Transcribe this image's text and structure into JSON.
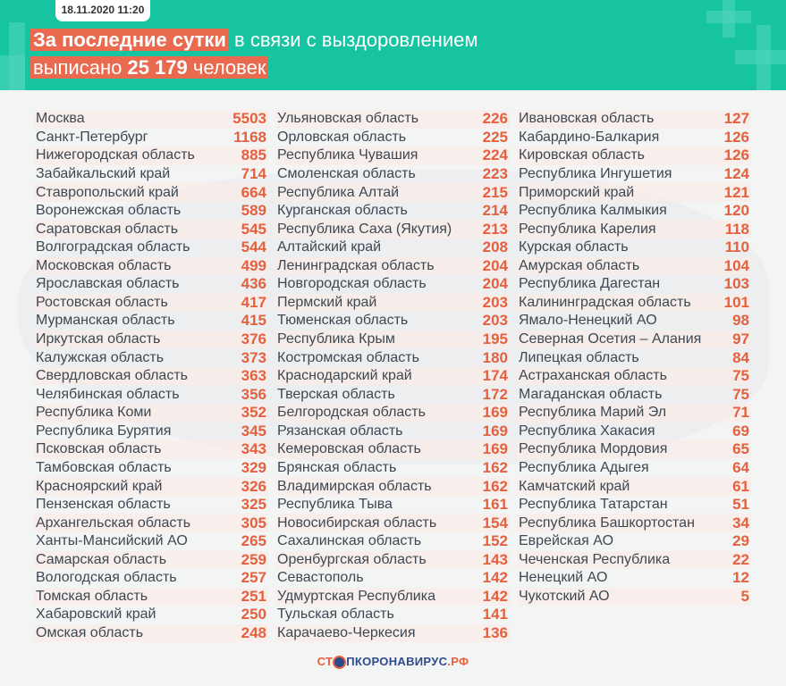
{
  "header": {
    "date": "18.11.2020 11:20",
    "highlight": "За последние сутки",
    "line1_rest": "в связи с выздоровлением",
    "line2_pre": "выписано",
    "total": "25 179",
    "line2_post": "человек"
  },
  "colors": {
    "header_bg": "#17c4a2",
    "highlight": "#e96a4f",
    "number": "#e5603e"
  },
  "columns": [
    [
      [
        "Москва",
        "5503"
      ],
      [
        "Санкт-Петербург",
        "1168"
      ],
      [
        "Нижегородская область",
        "885"
      ],
      [
        "Забайкальский край",
        "714"
      ],
      [
        "Ставропольский край",
        "664"
      ],
      [
        "Воронежская область",
        "589"
      ],
      [
        "Саратовская область",
        "545"
      ],
      [
        "Волгоградская область",
        "544"
      ],
      [
        "Московская область",
        "499"
      ],
      [
        "Ярославская область",
        "436"
      ],
      [
        "Ростовская область",
        "417"
      ],
      [
        "Мурманская область",
        "415"
      ],
      [
        "Иркутская область",
        "376"
      ],
      [
        "Калужская область",
        "373"
      ],
      [
        "Свердловская область",
        "363"
      ],
      [
        "Челябинская область",
        "356"
      ],
      [
        "Республика Коми",
        "352"
      ],
      [
        "Республика Бурятия",
        "345"
      ],
      [
        "Псковская область",
        "343"
      ],
      [
        "Тамбовская область",
        "329"
      ],
      [
        "Красноярский край",
        "326"
      ],
      [
        "Пензенская область",
        "325"
      ],
      [
        "Архангельская область",
        "305"
      ],
      [
        "Ханты-Мансийский АО",
        "265"
      ],
      [
        "Самарская область",
        "259"
      ],
      [
        "Вологодская область",
        "257"
      ],
      [
        "Томская область",
        "251"
      ],
      [
        "Хабаровский край",
        "250"
      ],
      [
        "Омская область",
        "248"
      ]
    ],
    [
      [
        "Ульяновская область",
        "226"
      ],
      [
        "Орловская область",
        "225"
      ],
      [
        "Республика Чувашия",
        "224"
      ],
      [
        "Смоленская область",
        "223"
      ],
      [
        "Республика Алтай",
        "215"
      ],
      [
        "Курганская область",
        "214"
      ],
      [
        "Республика Саха (Якутия)",
        "213"
      ],
      [
        "Алтайский край",
        "208"
      ],
      [
        "Ленинградская область",
        "204"
      ],
      [
        "Новгородская область",
        "204"
      ],
      [
        "Пермский край",
        "203"
      ],
      [
        "Тюменская область",
        "203"
      ],
      [
        "Республика Крым",
        "195"
      ],
      [
        "Костромская область",
        "180"
      ],
      [
        "Краснодарский край",
        "174"
      ],
      [
        "Тверская область",
        "172"
      ],
      [
        "Белгородская область",
        "169"
      ],
      [
        "Рязанская область",
        "169"
      ],
      [
        "Кемеровская область",
        "169"
      ],
      [
        "Брянская область",
        "162"
      ],
      [
        "Владимирская область",
        "162"
      ],
      [
        "Республика Тыва",
        "161"
      ],
      [
        "Новосибирская область",
        "154"
      ],
      [
        "Сахалинская область",
        "152"
      ],
      [
        "Оренбургская область",
        "143"
      ],
      [
        "Севастополь",
        "142"
      ],
      [
        "Удмуртская Республика",
        "142"
      ],
      [
        "Тульская область",
        "141"
      ],
      [
        "Карачаево-Черкесия",
        "136"
      ]
    ],
    [
      [
        "Ивановская область",
        "127"
      ],
      [
        "Кабардино-Балкария",
        "126"
      ],
      [
        "Кировская область",
        "126"
      ],
      [
        "Республика Ингушетия",
        "124"
      ],
      [
        "Приморский край",
        "121"
      ],
      [
        "Республика Калмыкия",
        "120"
      ],
      [
        "Республика Карелия",
        "118"
      ],
      [
        "Курская область",
        "110"
      ],
      [
        "Амурская область",
        "104"
      ],
      [
        "Республика Дагестан",
        "103"
      ],
      [
        "Калининградская область",
        "101"
      ],
      [
        "Ямало-Ненецкий АО",
        "98"
      ],
      [
        "Северная Осетия – Алания",
        "97"
      ],
      [
        "Липецкая область",
        "84"
      ],
      [
        "Астраханская область",
        "75"
      ],
      [
        "Магаданская область",
        "75"
      ],
      [
        "Республика Марий Эл",
        "71"
      ],
      [
        "Республика Хакасия",
        "69"
      ],
      [
        "Республика Мордовия",
        "65"
      ],
      [
        "Республика Адыгея",
        "64"
      ],
      [
        "Камчатский край",
        "61"
      ],
      [
        "Республика Татарстан",
        "51"
      ],
      [
        "Республика Башкортостан",
        "34"
      ],
      [
        "Еврейская АО",
        "29"
      ],
      [
        "Чеченская Республика",
        "22"
      ],
      [
        "Ненецкий АО",
        "12"
      ],
      [
        "Чукотский АО",
        "5"
      ]
    ]
  ],
  "footer": {
    "logo_part1": "СТ",
    "logo_part2": "ПКОРОНАВИРУС",
    "logo_part3": ".РФ"
  }
}
